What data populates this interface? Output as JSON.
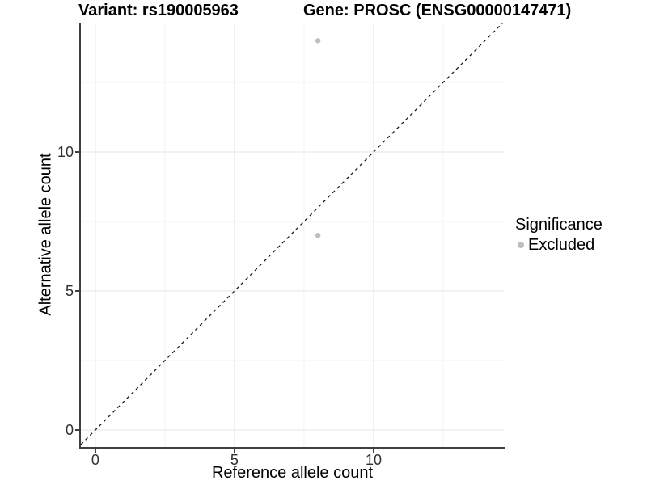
{
  "chart_data": {
    "type": "scatter",
    "title_left": "Variant: rs190005963",
    "title_right": "Gene: PROSC (ENSG00000147471)",
    "xlabel": "Reference allele count",
    "ylabel": "Alternative allele count",
    "xlim": [
      -0.52,
      14.68
    ],
    "ylim": [
      -0.61,
      14.65
    ],
    "x_ticks": [
      0,
      5,
      10
    ],
    "y_ticks": [
      0,
      5,
      10
    ],
    "x_minor_ticks": [
      2.5,
      7.5,
      12.5
    ],
    "y_minor_ticks": [
      2.5,
      7.5,
      12.5
    ],
    "grid": true,
    "reference_line": {
      "type": "identity y=x",
      "style": "dashed"
    },
    "series": [
      {
        "name": "Excluded",
        "color": "#bebebe",
        "points": [
          {
            "x": 8,
            "y": 7
          },
          {
            "x": 8,
            "y": 14
          }
        ]
      }
    ],
    "legend": {
      "title": "Significance",
      "position": "right",
      "items": [
        {
          "label": "Excluded",
          "color": "#bebebe"
        }
      ]
    }
  },
  "colors": {
    "background": "#ffffff",
    "axis_line": "#3f3f3f",
    "grid_major": "#e9e9e9",
    "grid_minor": "#f3f3f3",
    "reference_line": "#1a1a1a",
    "point": "#bebebe",
    "text": "#000000"
  }
}
